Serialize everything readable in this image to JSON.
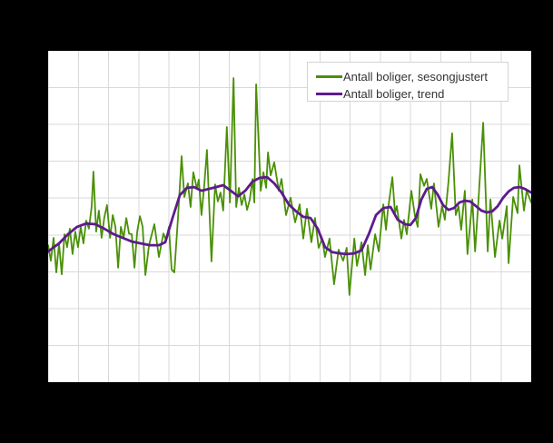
{
  "window": {
    "background_color": "#000000",
    "plot_background_color": "#ffffff"
  },
  "chart_data": {
    "type": "line",
    "title": "",
    "axis_tick_labels_visible": false,
    "x_unit": "vertical-gridline index (tick labels not visible in image)",
    "y_unit": "horizontal-gridline index (tick labels not visible in image)",
    "xlim": [
      0,
      16
    ],
    "ylim": [
      0,
      9
    ],
    "grid": {
      "on": true,
      "x_divisions": 16,
      "y_divisions": 9,
      "color": "#d9d9d9"
    },
    "legend": {
      "position": "top-right",
      "background": "#ffffff",
      "border_color": "#d4d4d4",
      "items": [
        {
          "label": "Antall boliger, sesongjustert",
          "color": "#4a9006"
        },
        {
          "label": "Antall boliger, trend",
          "color": "#5e1a8e"
        }
      ]
    },
    "series": [
      {
        "name": "Antall boliger, sesongjustert",
        "color": "#4a9006",
        "points": [
          [
            0,
            3.72
          ],
          [
            0.09,
            3.3
          ],
          [
            0.18,
            3.92
          ],
          [
            0.27,
            2.98
          ],
          [
            0.36,
            3.77
          ],
          [
            0.45,
            2.93
          ],
          [
            0.54,
            4.02
          ],
          [
            0.63,
            3.67
          ],
          [
            0.72,
            4.17
          ],
          [
            0.81,
            3.48
          ],
          [
            0.9,
            4.09
          ],
          [
            0.99,
            3.67
          ],
          [
            1.08,
            4.22
          ],
          [
            1.17,
            3.77
          ],
          [
            1.26,
            4.39
          ],
          [
            1.35,
            4.17
          ],
          [
            1.44,
            4.76
          ],
          [
            1.5,
            5.72
          ],
          [
            1.59,
            4.09
          ],
          [
            1.68,
            4.66
          ],
          [
            1.77,
            3.92
          ],
          [
            1.86,
            4.46
          ],
          [
            1.95,
            4.81
          ],
          [
            2.05,
            3.92
          ],
          [
            2.14,
            4.54
          ],
          [
            2.23,
            4.22
          ],
          [
            2.32,
            3.11
          ],
          [
            2.41,
            4.22
          ],
          [
            2.5,
            3.92
          ],
          [
            2.59,
            4.46
          ],
          [
            2.68,
            4.04
          ],
          [
            2.77,
            4.02
          ],
          [
            2.86,
            3.11
          ],
          [
            2.95,
            4.09
          ],
          [
            3.04,
            4.51
          ],
          [
            3.13,
            4.22
          ],
          [
            3.22,
            2.91
          ],
          [
            3.34,
            3.72
          ],
          [
            3.52,
            4.29
          ],
          [
            3.67,
            3.4
          ],
          [
            3.82,
            4.04
          ],
          [
            3.91,
            3.85
          ],
          [
            4.0,
            4.22
          ],
          [
            4.09,
            3.06
          ],
          [
            4.18,
            2.98
          ],
          [
            4.3,
            4.46
          ],
          [
            4.42,
            6.14
          ],
          [
            4.51,
            5.03
          ],
          [
            4.63,
            5.4
          ],
          [
            4.72,
            4.76
          ],
          [
            4.81,
            5.7
          ],
          [
            4.93,
            5.25
          ],
          [
            4.99,
            5.5
          ],
          [
            5.08,
            4.54
          ],
          [
            5.17,
            5.33
          ],
          [
            5.26,
            6.31
          ],
          [
            5.41,
            3.28
          ],
          [
            5.53,
            5.37
          ],
          [
            5.62,
            4.91
          ],
          [
            5.71,
            5.15
          ],
          [
            5.8,
            4.66
          ],
          [
            5.92,
            6.93
          ],
          [
            6.02,
            4.88
          ],
          [
            6.14,
            8.26
          ],
          [
            6.23,
            4.76
          ],
          [
            6.32,
            5.28
          ],
          [
            6.41,
            4.81
          ],
          [
            6.5,
            5.1
          ],
          [
            6.59,
            4.68
          ],
          [
            6.68,
            4.96
          ],
          [
            6.77,
            5.52
          ],
          [
            6.83,
            4.88
          ],
          [
            6.89,
            8.09
          ],
          [
            7.04,
            5.2
          ],
          [
            7.13,
            5.7
          ],
          [
            7.22,
            5.28
          ],
          [
            7.28,
            6.24
          ],
          [
            7.37,
            5.62
          ],
          [
            7.49,
            5.97
          ],
          [
            7.64,
            5.2
          ],
          [
            7.73,
            5.52
          ],
          [
            7.88,
            4.54
          ],
          [
            8.03,
            5.01
          ],
          [
            8.18,
            4.34
          ],
          [
            8.33,
            4.83
          ],
          [
            8.45,
            3.9
          ],
          [
            8.57,
            4.71
          ],
          [
            8.72,
            3.8
          ],
          [
            8.84,
            4.46
          ],
          [
            8.96,
            3.65
          ],
          [
            9.08,
            3.9
          ],
          [
            9.17,
            3.4
          ],
          [
            9.32,
            3.9
          ],
          [
            9.47,
            2.66
          ],
          [
            9.62,
            3.6
          ],
          [
            9.77,
            3.3
          ],
          [
            9.89,
            3.65
          ],
          [
            9.98,
            2.37
          ],
          [
            10.14,
            3.9
          ],
          [
            10.23,
            3.16
          ],
          [
            10.38,
            3.8
          ],
          [
            10.5,
            2.91
          ],
          [
            10.59,
            3.72
          ],
          [
            10.68,
            3.06
          ],
          [
            10.83,
            4.02
          ],
          [
            10.95,
            3.55
          ],
          [
            11.1,
            4.83
          ],
          [
            11.19,
            4.14
          ],
          [
            11.25,
            4.66
          ],
          [
            11.4,
            5.57
          ],
          [
            11.49,
            4.59
          ],
          [
            11.55,
            4.78
          ],
          [
            11.7,
            3.9
          ],
          [
            11.79,
            4.41
          ],
          [
            11.88,
            4.02
          ],
          [
            12.03,
            5.2
          ],
          [
            12.15,
            4.51
          ],
          [
            12.24,
            4.22
          ],
          [
            12.33,
            5.65
          ],
          [
            12.45,
            5.33
          ],
          [
            12.54,
            5.52
          ],
          [
            12.69,
            4.71
          ],
          [
            12.78,
            5.4
          ],
          [
            12.93,
            4.22
          ],
          [
            13.05,
            4.78
          ],
          [
            13.14,
            4.41
          ],
          [
            13.26,
            5.45
          ],
          [
            13.38,
            6.76
          ],
          [
            13.5,
            4.54
          ],
          [
            13.59,
            4.78
          ],
          [
            13.68,
            4.14
          ],
          [
            13.8,
            5.2
          ],
          [
            13.89,
            3.48
          ],
          [
            14.05,
            4.96
          ],
          [
            14.14,
            3.55
          ],
          [
            14.26,
            5.01
          ],
          [
            14.41,
            7.05
          ],
          [
            14.56,
            3.55
          ],
          [
            14.65,
            4.96
          ],
          [
            14.8,
            3.4
          ],
          [
            14.95,
            4.39
          ],
          [
            15.04,
            3.9
          ],
          [
            15.19,
            4.78
          ],
          [
            15.25,
            3.23
          ],
          [
            15.4,
            5.03
          ],
          [
            15.55,
            4.59
          ],
          [
            15.61,
            5.89
          ],
          [
            15.76,
            4.66
          ],
          [
            15.85,
            5.2
          ],
          [
            16,
            4.88
          ]
        ]
      },
      {
        "name": "Antall boliger, trend",
        "color": "#5e1a8e",
        "points": [
          [
            0,
            3.55
          ],
          [
            0.36,
            3.77
          ],
          [
            0.66,
            4.02
          ],
          [
            0.96,
            4.22
          ],
          [
            1.26,
            4.31
          ],
          [
            1.56,
            4.29
          ],
          [
            1.86,
            4.17
          ],
          [
            2.17,
            4.02
          ],
          [
            2.47,
            3.92
          ],
          [
            2.77,
            3.82
          ],
          [
            3.07,
            3.77
          ],
          [
            3.37,
            3.72
          ],
          [
            3.67,
            3.72
          ],
          [
            3.88,
            3.8
          ],
          [
            4.12,
            4.46
          ],
          [
            4.36,
            5.08
          ],
          [
            4.6,
            5.28
          ],
          [
            4.84,
            5.3
          ],
          [
            5.08,
            5.2
          ],
          [
            5.32,
            5.25
          ],
          [
            5.56,
            5.3
          ],
          [
            5.8,
            5.35
          ],
          [
            6.05,
            5.2
          ],
          [
            6.29,
            5.05
          ],
          [
            6.53,
            5.2
          ],
          [
            6.77,
            5.45
          ],
          [
            7.01,
            5.55
          ],
          [
            7.25,
            5.57
          ],
          [
            7.49,
            5.4
          ],
          [
            7.73,
            5.15
          ],
          [
            7.97,
            4.83
          ],
          [
            8.21,
            4.64
          ],
          [
            8.45,
            4.49
          ],
          [
            8.69,
            4.46
          ],
          [
            8.93,
            4.17
          ],
          [
            9.17,
            3.67
          ],
          [
            9.41,
            3.53
          ],
          [
            9.65,
            3.5
          ],
          [
            9.89,
            3.48
          ],
          [
            10.14,
            3.5
          ],
          [
            10.38,
            3.58
          ],
          [
            10.62,
            4.02
          ],
          [
            10.86,
            4.54
          ],
          [
            11.1,
            4.73
          ],
          [
            11.34,
            4.76
          ],
          [
            11.58,
            4.41
          ],
          [
            11.82,
            4.29
          ],
          [
            12.0,
            4.27
          ],
          [
            12.18,
            4.46
          ],
          [
            12.36,
            4.96
          ],
          [
            12.54,
            5.25
          ],
          [
            12.72,
            5.3
          ],
          [
            12.9,
            5.1
          ],
          [
            13.08,
            4.81
          ],
          [
            13.26,
            4.68
          ],
          [
            13.44,
            4.73
          ],
          [
            13.62,
            4.88
          ],
          [
            13.8,
            4.93
          ],
          [
            13.98,
            4.91
          ],
          [
            14.17,
            4.78
          ],
          [
            14.35,
            4.66
          ],
          [
            14.53,
            4.61
          ],
          [
            14.71,
            4.64
          ],
          [
            14.89,
            4.78
          ],
          [
            15.07,
            5.01
          ],
          [
            15.25,
            5.18
          ],
          [
            15.43,
            5.28
          ],
          [
            15.61,
            5.3
          ],
          [
            15.79,
            5.25
          ],
          [
            16,
            5.15
          ]
        ]
      }
    ]
  }
}
